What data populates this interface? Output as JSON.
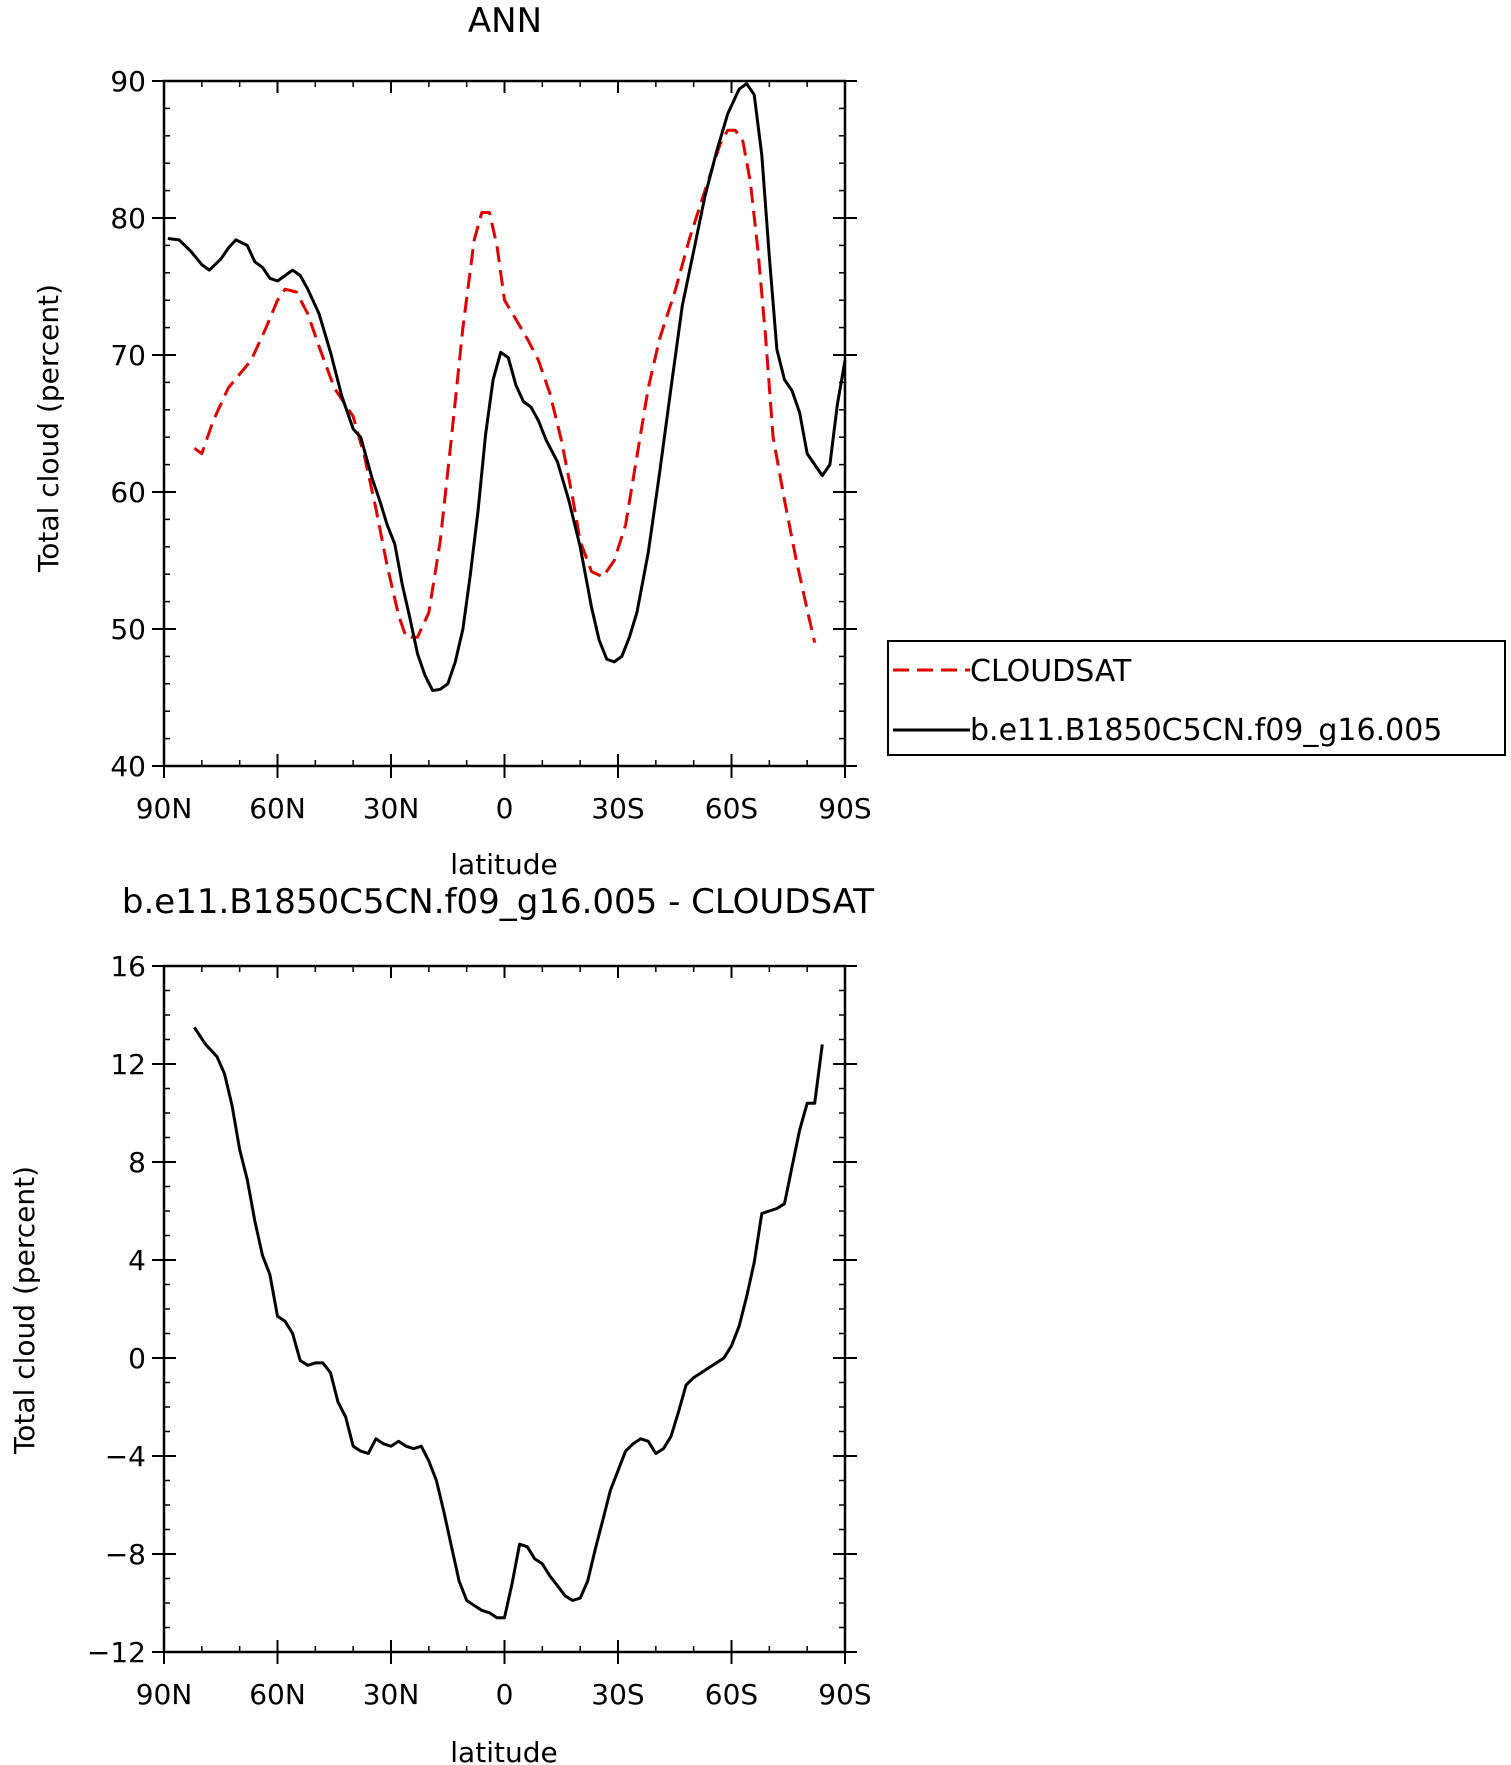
{
  "chart_data": [
    {
      "type": "line",
      "title": "ANN",
      "xlabel": "latitude",
      "ylabel": "Total cloud (percent)",
      "xlim": [
        90,
        -90
      ],
      "ylim": [
        40,
        90
      ],
      "x_ticks": [
        90,
        60,
        30,
        0,
        -30,
        -60,
        -90
      ],
      "x_tick_labels": [
        "90N",
        "60N",
        "30N",
        "0",
        "30S",
        "60S",
        "90S"
      ],
      "y_ticks": [
        40,
        50,
        60,
        70,
        80,
        90
      ],
      "y_tick_labels": [
        "40",
        "50",
        "60",
        "70",
        "80",
        "90"
      ],
      "legend_position": "right, outside plot",
      "series": [
        {
          "name": "CLOUDSAT",
          "color": "#e00000",
          "dash": "dashed",
          "points": [
            [
              82,
              63.2
            ],
            [
              80,
              62.8
            ],
            [
              77,
              65.2
            ],
            [
              73,
              67.6
            ],
            [
              67,
              69.6
            ],
            [
              63,
              72.0
            ],
            [
              60,
              74.0
            ],
            [
              58,
              74.8
            ],
            [
              55,
              74.6
            ],
            [
              52,
              73.0
            ],
            [
              49,
              70.6
            ],
            [
              45,
              67.6
            ],
            [
              40,
              65.5
            ],
            [
              37,
              62.6
            ],
            [
              34,
              58.8
            ],
            [
              31,
              54.6
            ],
            [
              28,
              51.0
            ],
            [
              26,
              49.4
            ],
            [
              23,
              49.4
            ],
            [
              20,
              51.2
            ],
            [
              17,
              56.4
            ],
            [
              14,
              64.0
            ],
            [
              11,
              72.0
            ],
            [
              8,
              78.4
            ],
            [
              6,
              80.4
            ],
            [
              4,
              80.4
            ],
            [
              2,
              78.0
            ],
            [
              0,
              74.0
            ],
            [
              -3,
              72.6
            ],
            [
              -6,
              71.2
            ],
            [
              -9,
              69.6
            ],
            [
              -12,
              67.2
            ],
            [
              -15,
              63.8
            ],
            [
              -18,
              59.6
            ],
            [
              -20,
              56.4
            ],
            [
              -23,
              54.2
            ],
            [
              -26,
              53.8
            ],
            [
              -29,
              55.0
            ],
            [
              -32,
              57.6
            ],
            [
              -35,
              62.6
            ],
            [
              -38,
              67.6
            ],
            [
              -41,
              71.2
            ],
            [
              -45,
              74.6
            ],
            [
              -49,
              78.6
            ],
            [
              -53,
              82.0
            ],
            [
              -57,
              85.4
            ],
            [
              -59,
              86.4
            ],
            [
              -61,
              86.4
            ],
            [
              -63,
              85.6
            ],
            [
              -65,
              82.6
            ],
            [
              -67,
              77.6
            ],
            [
              -69,
              71.4
            ],
            [
              -71,
              64.0
            ],
            [
              -74,
              59.4
            ],
            [
              -77,
              55.2
            ],
            [
              -80,
              51.4
            ],
            [
              -82,
              49.0
            ]
          ]
        },
        {
          "name": "b.e11.B1850C5CN.f09_g16.005",
          "color": "#000000",
          "dash": "solid",
          "points": [
            [
              89,
              78.5
            ],
            [
              86,
              78.4
            ],
            [
              83,
              77.6
            ],
            [
              80,
              76.6
            ],
            [
              78,
              76.2
            ],
            [
              75,
              77.0
            ],
            [
              73,
              77.8
            ],
            [
              71,
              78.4
            ],
            [
              68,
              78.0
            ],
            [
              66,
              76.8
            ],
            [
              64,
              76.4
            ],
            [
              62,
              75.6
            ],
            [
              60,
              75.4
            ],
            [
              58,
              75.8
            ],
            [
              56,
              76.2
            ],
            [
              54,
              75.8
            ],
            [
              52,
              74.8
            ],
            [
              49,
              73.0
            ],
            [
              46,
              70.2
            ],
            [
              43,
              67.0
            ],
            [
              40,
              64.6
            ],
            [
              38,
              64.0
            ],
            [
              35,
              61.0
            ],
            [
              33,
              59.4
            ],
            [
              31,
              57.6
            ],
            [
              29,
              56.2
            ],
            [
              27,
              53.2
            ],
            [
              25,
              50.8
            ],
            [
              23,
              48.2
            ],
            [
              21,
              46.6
            ],
            [
              19,
              45.5
            ],
            [
              17,
              45.6
            ],
            [
              15,
              46.0
            ],
            [
              13,
              47.6
            ],
            [
              11,
              50.0
            ],
            [
              9,
              54.0
            ],
            [
              7,
              58.6
            ],
            [
              5,
              64.2
            ],
            [
              3,
              68.2
            ],
            [
              1,
              70.2
            ],
            [
              -1,
              69.8
            ],
            [
              -3,
              67.8
            ],
            [
              -5,
              66.6
            ],
            [
              -7,
              66.2
            ],
            [
              -9,
              65.2
            ],
            [
              -11,
              63.8
            ],
            [
              -14,
              62.2
            ],
            [
              -17,
              59.4
            ],
            [
              -20,
              56.0
            ],
            [
              -23,
              51.6
            ],
            [
              -25,
              49.2
            ],
            [
              -27,
              47.8
            ],
            [
              -29,
              47.6
            ],
            [
              -31,
              48.0
            ],
            [
              -33,
              49.4
            ],
            [
              -35,
              51.2
            ],
            [
              -38,
              55.6
            ],
            [
              -41,
              61.4
            ],
            [
              -44,
              67.6
            ],
            [
              -47,
              73.6
            ],
            [
              -50,
              77.6
            ],
            [
              -53,
              81.6
            ],
            [
              -56,
              84.8
            ],
            [
              -59,
              87.6
            ],
            [
              -62,
              89.4
            ],
            [
              -64,
              89.8
            ],
            [
              -66,
              89.0
            ],
            [
              -68,
              84.6
            ],
            [
              -70,
              77.2
            ],
            [
              -72,
              70.4
            ],
            [
              -74,
              68.2
            ],
            [
              -76,
              67.4
            ],
            [
              -78,
              65.8
            ],
            [
              -80,
              62.8
            ],
            [
              -82,
              62.0
            ],
            [
              -84,
              61.2
            ],
            [
              -86,
              62.0
            ],
            [
              -88,
              66.4
            ],
            [
              -90,
              69.6
            ]
          ]
        }
      ]
    },
    {
      "type": "line",
      "title": "b.e11.B1850C5CN.f09_g16.005 - CLOUDSAT",
      "xlabel": "latitude",
      "ylabel": "Total cloud (percent)",
      "xlim": [
        90,
        -90
      ],
      "ylim": [
        -12,
        16
      ],
      "x_ticks": [
        90,
        60,
        30,
        0,
        -30,
        -60,
        -90
      ],
      "x_tick_labels": [
        "90N",
        "60N",
        "30N",
        "0",
        "30S",
        "60S",
        "90S"
      ],
      "y_ticks": [
        -12,
        -8,
        -4,
        0,
        4,
        8,
        12,
        16
      ],
      "y_tick_labels": [
        "−12",
        "−8",
        "−4",
        "0",
        "4",
        "8",
        "12",
        "16"
      ],
      "series": [
        {
          "color": "#000000",
          "dash": "solid",
          "points": [
            [
              82,
              13.5
            ],
            [
              79,
              12.8
            ],
            [
              76,
              12.3
            ],
            [
              74,
              11.6
            ],
            [
              72,
              10.3
            ],
            [
              70,
              8.5
            ],
            [
              68,
              7.3
            ],
            [
              66,
              5.6
            ],
            [
              64,
              4.2
            ],
            [
              62,
              3.4
            ],
            [
              60,
              1.7
            ],
            [
              58,
              1.5
            ],
            [
              56,
              1.0
            ],
            [
              54,
              -0.1
            ],
            [
              52,
              -0.3
            ],
            [
              50,
              -0.2
            ],
            [
              48,
              -0.2
            ],
            [
              46,
              -0.6
            ],
            [
              44,
              -1.8
            ],
            [
              42,
              -2.4
            ],
            [
              40,
              -3.6
            ],
            [
              38,
              -3.8
            ],
            [
              36,
              -3.9
            ],
            [
              34,
              -3.3
            ],
            [
              32,
              -3.5
            ],
            [
              30,
              -3.6
            ],
            [
              28,
              -3.4
            ],
            [
              26,
              -3.6
            ],
            [
              24,
              -3.7
            ],
            [
              22,
              -3.6
            ],
            [
              20,
              -4.2
            ],
            [
              18,
              -5.0
            ],
            [
              16,
              -6.3
            ],
            [
              14,
              -7.7
            ],
            [
              12,
              -9.1
            ],
            [
              10,
              -9.9
            ],
            [
              8,
              -10.1
            ],
            [
              6,
              -10.3
            ],
            [
              4,
              -10.4
            ],
            [
              2,
              -10.6
            ],
            [
              0,
              -10.6
            ],
            [
              -2,
              -9.2
            ],
            [
              -4,
              -7.6
            ],
            [
              -6,
              -7.7
            ],
            [
              -8,
              -8.2
            ],
            [
              -10,
              -8.4
            ],
            [
              -12,
              -8.9
            ],
            [
              -14,
              -9.3
            ],
            [
              -16,
              -9.7
            ],
            [
              -18,
              -9.9
            ],
            [
              -20,
              -9.8
            ],
            [
              -22,
              -9.1
            ],
            [
              -24,
              -7.8
            ],
            [
              -26,
              -6.6
            ],
            [
              -28,
              -5.4
            ],
            [
              -30,
              -4.6
            ],
            [
              -32,
              -3.8
            ],
            [
              -34,
              -3.5
            ],
            [
              -36,
              -3.3
            ],
            [
              -38,
              -3.4
            ],
            [
              -40,
              -3.9
            ],
            [
              -42,
              -3.7
            ],
            [
              -44,
              -3.2
            ],
            [
              -46,
              -2.2
            ],
            [
              -48,
              -1.1
            ],
            [
              -50,
              -0.8
            ],
            [
              -52,
              -0.6
            ],
            [
              -54,
              -0.4
            ],
            [
              -56,
              -0.2
            ],
            [
              -58,
              0.0
            ],
            [
              -60,
              0.5
            ],
            [
              -62,
              1.3
            ],
            [
              -64,
              2.5
            ],
            [
              -66,
              3.9
            ],
            [
              -68,
              5.9
            ],
            [
              -70,
              6.0
            ],
            [
              -72,
              6.1
            ],
            [
              -74,
              6.3
            ],
            [
              -76,
              7.8
            ],
            [
              -78,
              9.3
            ],
            [
              -80,
              10.4
            ],
            [
              -82,
              10.4
            ],
            [
              -84,
              12.8
            ]
          ]
        }
      ]
    }
  ]
}
